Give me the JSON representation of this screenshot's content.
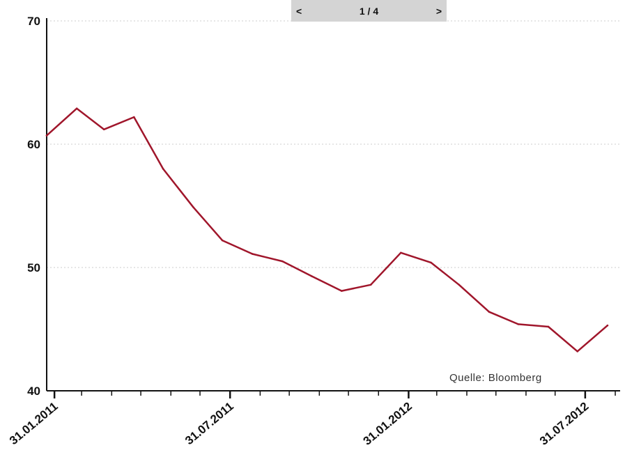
{
  "pager": {
    "prev_label": "<",
    "page_label": "1 / 4",
    "next_label": ">"
  },
  "source_label": "Quelle: Bloomberg",
  "colors": {
    "line": "#a0162b",
    "grid": "#cccccc",
    "axis": "#111111",
    "pager_bg": "#d4d4d4"
  },
  "chart_data": {
    "type": "line",
    "title": "",
    "xlabel": "",
    "ylabel": "",
    "ylim": [
      40,
      70
    ],
    "y_ticks": [
      40,
      50,
      60,
      70
    ],
    "grid": "horizontal dotted at 50, 60, 70",
    "x_tick_labels": [
      "31.01.2011",
      "31.07.2011",
      "31.01.2012",
      "31.07.2012"
    ],
    "x_tick_dates": [
      "2011-01-31",
      "2011-07-31",
      "2012-01-31",
      "2012-07-31"
    ],
    "x_minor_tick_dates": [
      "2011-02-28",
      "2011-03-31",
      "2011-04-30",
      "2011-05-31",
      "2011-06-30",
      "2011-08-31",
      "2011-09-30",
      "2011-10-31",
      "2011-11-30",
      "2011-12-31",
      "2012-02-29",
      "2012-03-31",
      "2012-04-30",
      "2012-05-31",
      "2012-06-30",
      "2012-08-31"
    ],
    "x_range": [
      "2011-01-23",
      "2012-09-05"
    ],
    "series": [
      {
        "color": "#a0162b",
        "points": [
          [
            "2011-01-23",
            60.7
          ],
          [
            "2011-02-23",
            62.9
          ],
          [
            "2011-03-23",
            61.2
          ],
          [
            "2011-04-23",
            62.2
          ],
          [
            "2011-05-23",
            58.0
          ],
          [
            "2011-06-23",
            54.9
          ],
          [
            "2011-07-23",
            52.2
          ],
          [
            "2011-08-23",
            51.1
          ],
          [
            "2011-09-23",
            50.5
          ],
          [
            "2011-10-23",
            49.3
          ],
          [
            "2011-11-23",
            48.1
          ],
          [
            "2011-12-23",
            48.6
          ],
          [
            "2012-01-23",
            51.2
          ],
          [
            "2012-02-23",
            50.4
          ],
          [
            "2012-03-23",
            48.6
          ],
          [
            "2012-04-23",
            46.4
          ],
          [
            "2012-05-23",
            45.4
          ],
          [
            "2012-06-23",
            45.2
          ],
          [
            "2012-07-23",
            43.2
          ],
          [
            "2012-08-23",
            45.3
          ]
        ]
      }
    ]
  }
}
